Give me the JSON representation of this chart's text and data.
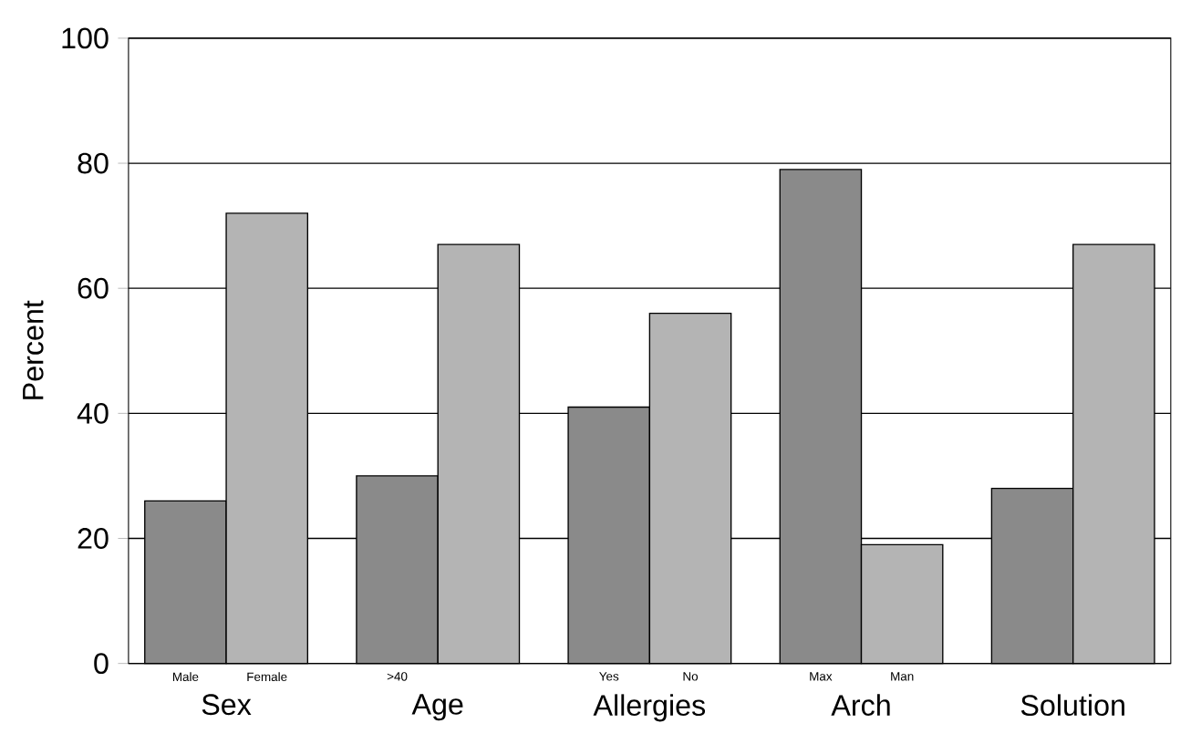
{
  "chart_data": {
    "type": "bar",
    "ylabel": "Percent",
    "categories": [
      "Male",
      "Female",
      ">40",
      null,
      "Yes",
      "No",
      "Max",
      "Man",
      null,
      null
    ],
    "values": [
      26,
      72,
      30,
      67,
      41,
      56,
      79,
      19,
      28,
      67
    ],
    "colors": [
      "#8a8a8a",
      "#b4b4b4",
      "#8a8a8a",
      "#b4b4b4",
      "#8a8a8a",
      "#b4b4b4",
      "#8a8a8a",
      "#b4b4b4",
      "#8a8a8a",
      "#b4b4b4"
    ],
    "annotations": [
      "Sex",
      "Age",
      "Allergies",
      "Arch",
      "Solution"
    ],
    "ylim": [
      0,
      100
    ],
    "yticks": [
      0,
      20,
      40,
      60,
      80,
      100
    ],
    "grid": "y"
  }
}
